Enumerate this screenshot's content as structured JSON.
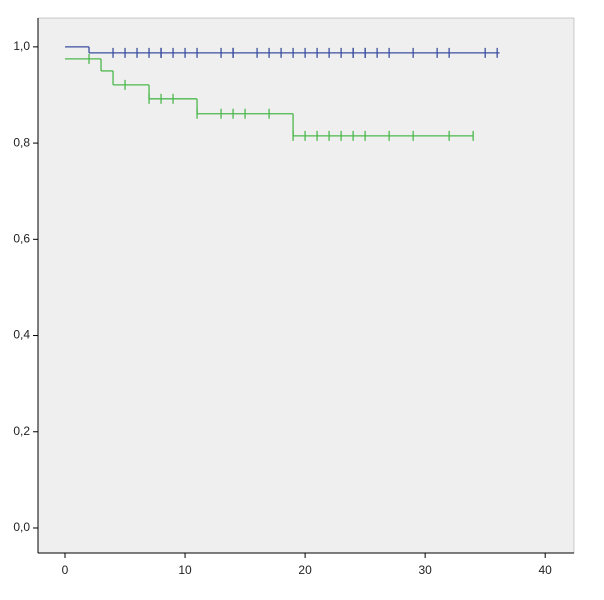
{
  "chart_data": {
    "type": "step",
    "xlim": [
      -2.25,
      42.4
    ],
    "xticks": [
      0,
      10,
      20,
      30,
      40
    ],
    "ylim": [
      -0.052,
      1.06
    ],
    "yticks": [
      {
        "value": 0,
        "label": "0,0"
      },
      {
        "value": 0.2,
        "label": "0,2"
      },
      {
        "value": 0.4,
        "label": "0,4"
      },
      {
        "value": 0.6,
        "label": "0,6"
      },
      {
        "value": 0.8,
        "label": "0,8"
      },
      {
        "value": 1,
        "label": "1,0"
      }
    ],
    "series": [
      {
        "color": "#3c4fa0",
        "x": [
          0,
          2,
          36.2
        ],
        "values": [
          1,
          0.9875,
          0.9875
        ],
        "censored_x": [
          4,
          5,
          6,
          7,
          8,
          8,
          9,
          10,
          11,
          13,
          14,
          14,
          16,
          17,
          18,
          19,
          20,
          21,
          22,
          23,
          24,
          24,
          25,
          25,
          26,
          27,
          29,
          31,
          32,
          35,
          36
        ],
        "censored_values": [
          0.9875,
          0.9875,
          0.9875,
          0.9875,
          0.9875,
          0.9875,
          0.9875,
          0.9875,
          0.9875,
          0.9875,
          0.9875,
          0.9875,
          0.9875,
          0.9875,
          0.9875,
          0.9875,
          0.9875,
          0.9875,
          0.9875,
          0.9875,
          0.9875,
          0.9875,
          0.9875,
          0.9875,
          0.9875,
          0.9875,
          0.9875,
          0.9875,
          0.9875,
          0.9875,
          0.9875
        ]
      },
      {
        "color": "#4cb84c",
        "x": [
          0,
          3,
          4,
          7,
          11,
          19,
          34
        ],
        "values": [
          0.975,
          0.95,
          0.921,
          0.892,
          0.861,
          0.815,
          0.815
        ],
        "censored_x": [
          2,
          5,
          7,
          8,
          9,
          11,
          13,
          14,
          15,
          17,
          19,
          20,
          21,
          22,
          23,
          24,
          25,
          27,
          29,
          32,
          34
        ],
        "censored_values": [
          0.975,
          0.921,
          0.892,
          0.892,
          0.892,
          0.861,
          0.861,
          0.861,
          0.861,
          0.861,
          0.815,
          0.815,
          0.815,
          0.815,
          0.815,
          0.815,
          0.815,
          0.815,
          0.815,
          0.815,
          0.815
        ]
      }
    ]
  }
}
